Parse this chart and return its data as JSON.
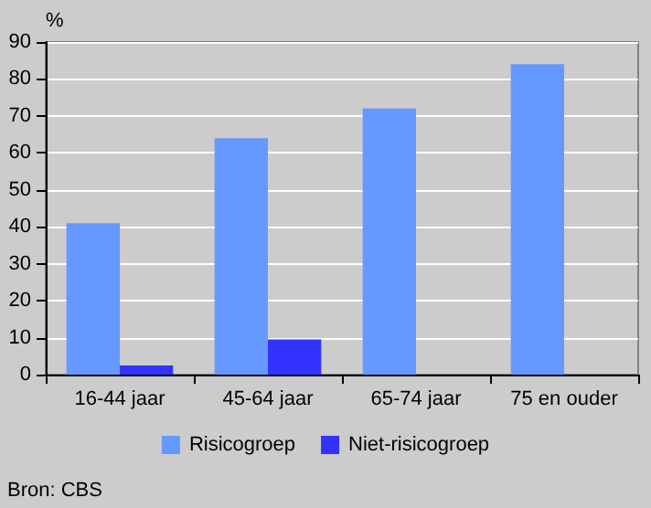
{
  "chart_data": {
    "type": "bar",
    "ylabel": "%",
    "categories": [
      "16-44 jaar",
      "45-64 jaar",
      "65-74 jaar",
      "75 en ouder"
    ],
    "series": [
      {
        "name": "Risicogroep",
        "color": "#6699ff",
        "values": [
          41,
          64,
          72,
          84
        ]
      },
      {
        "name": "Niet-risicogroep",
        "color": "#3333ff",
        "values": [
          2.5,
          9.5,
          null,
          null
        ]
      }
    ],
    "ylim": [
      0,
      90
    ],
    "yticks": [
      0,
      10,
      20,
      30,
      40,
      50,
      60,
      70,
      80,
      90
    ],
    "grid": "y",
    "legend": "bottom",
    "annotations": [
      "Bron: CBS"
    ]
  }
}
